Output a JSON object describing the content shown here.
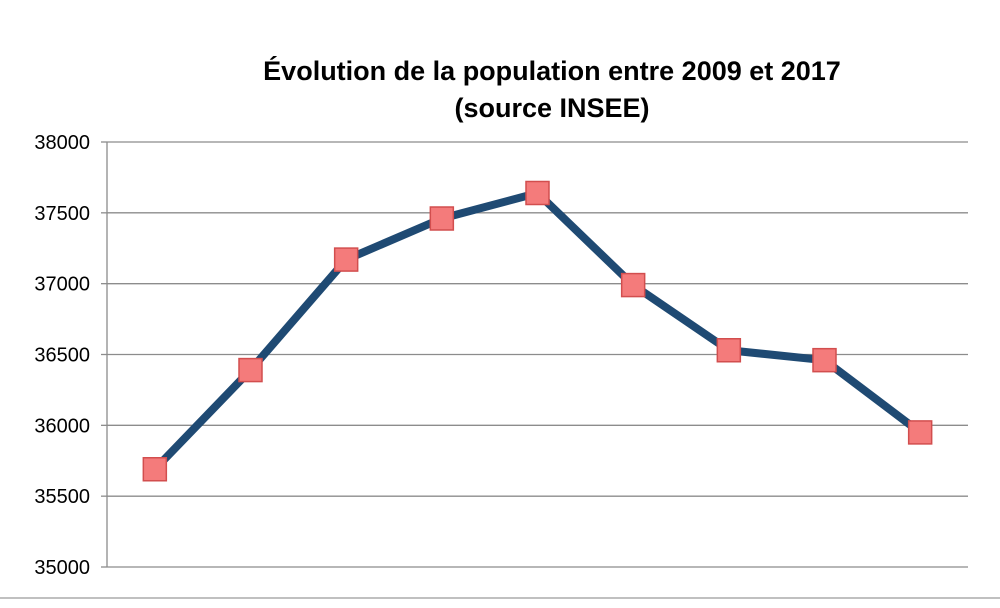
{
  "chart_data": {
    "type": "line",
    "title": "Évolution de la population entre 2009 et 2017",
    "subtitle": "(source INSEE)",
    "xlabel": "",
    "ylabel": "",
    "categories": [
      "",
      "",
      "",
      "",
      "",
      "",
      "",
      "",
      ""
    ],
    "series": [
      {
        "values": [
          35690,
          36390,
          37170,
          37460,
          37640,
          36990,
          36530,
          36460,
          35950
        ]
      }
    ],
    "ylim": [
      35000,
      38000
    ],
    "yticks": [
      35000,
      35500,
      36000,
      36500,
      37000,
      37500,
      38000
    ],
    "ytick_labels": [
      "35000",
      "35500",
      "36000",
      "36500",
      "37000",
      "37500",
      "38000"
    ],
    "grid": true,
    "legend": "none",
    "colors": {
      "line": "#1f4a73",
      "marker_fill": "#f47b7b",
      "marker_stroke": "#d24e4e",
      "grid": "#8c8c8c"
    }
  }
}
